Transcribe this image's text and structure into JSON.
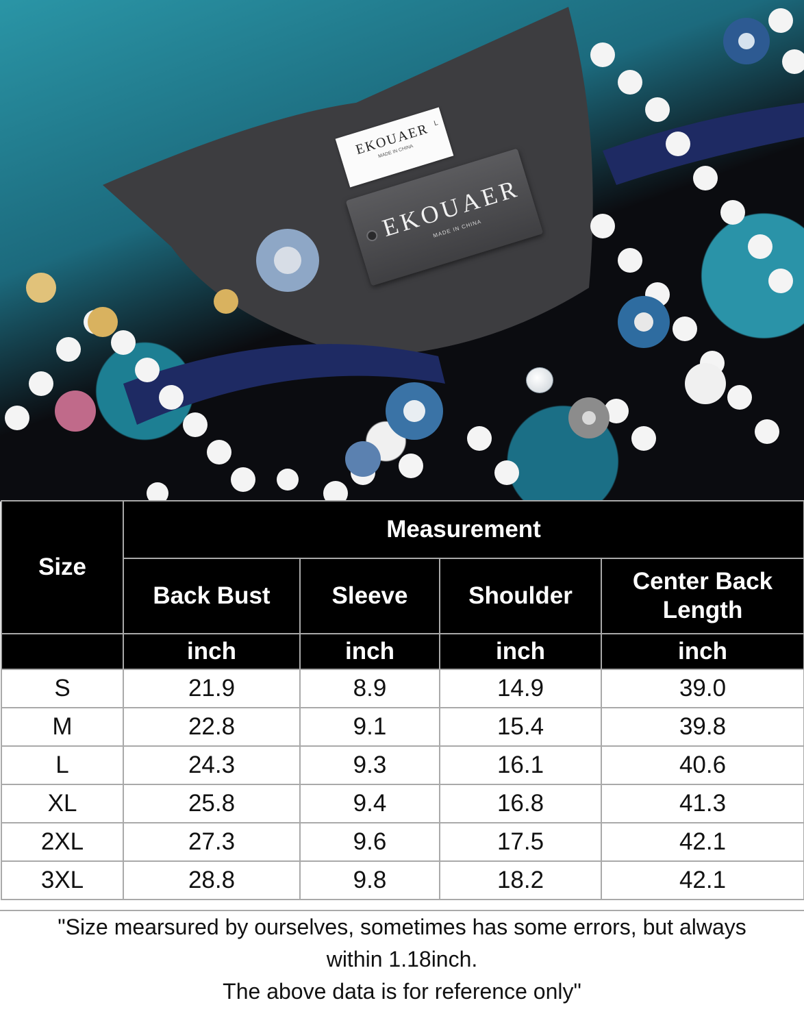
{
  "photo": {
    "label_brand": "EKOUAER",
    "label_small": "MADE IN CHINA",
    "label_size": "L",
    "tag_brand": "EKOUAER",
    "tag_small": "MADE IN CHINA"
  },
  "table": {
    "size_header": "Size",
    "measurement_header": "Measurement",
    "columns": [
      "Back Bust",
      "Sleeve",
      "Shoulder",
      "Center Back Length"
    ],
    "units": [
      "inch",
      "inch",
      "inch",
      "inch"
    ],
    "rows": [
      {
        "size": "S",
        "values": [
          "21.9",
          "8.9",
          "14.9",
          "39.0"
        ]
      },
      {
        "size": "M",
        "values": [
          "22.8",
          "9.1",
          "15.4",
          "39.8"
        ]
      },
      {
        "size": "L",
        "values": [
          "24.3",
          "9.3",
          "16.1",
          "40.6"
        ]
      },
      {
        "size": "XL",
        "values": [
          "25.8",
          "9.4",
          "16.8",
          "41.3"
        ]
      },
      {
        "size": "2XL",
        "values": [
          "27.3",
          "9.6",
          "17.5",
          "42.1"
        ]
      },
      {
        "size": "3XL",
        "values": [
          "28.8",
          "9.8",
          "18.2",
          "42.1"
        ]
      }
    ]
  },
  "note": {
    "line1": "\"Size mearsured by ourselves, sometimes has some errors, but always",
    "line2": "within 1.18inch.",
    "line3": "The above data is for reference only\""
  }
}
